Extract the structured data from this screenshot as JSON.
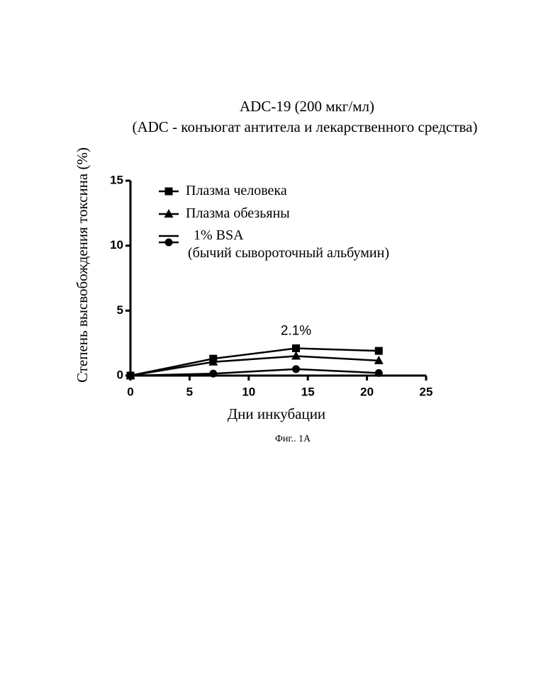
{
  "chart_data": {
    "type": "line",
    "title": "ADC-19 (200 мкг/мл)",
    "subtitle": "(ADC - конъюгат антитела и лекарственного средства)",
    "x_label": "Дни инкубации",
    "y_label": "Степень высвобождения токсина (%)",
    "x": [
      0,
      7,
      14,
      21
    ],
    "series": [
      {
        "name": "Плазма человека",
        "color": "#000000",
        "marker": "square",
        "values": [
          0,
          1.3,
          2.1,
          1.9
        ],
        "value_labels": [
          null,
          null,
          "2.1%",
          null
        ]
      },
      {
        "name": "Плазма обезьяны",
        "color": "#000000",
        "marker": "triangle",
        "values": [
          0,
          1.05,
          1.5,
          1.15
        ]
      },
      {
        "name": "1% BSA\n(бычий сывороточный альбумин)",
        "color": "#000000",
        "marker": "circle",
        "values": [
          0,
          0.15,
          0.5,
          0.2
        ]
      }
    ],
    "xlim": [
      0,
      25
    ],
    "xticks": [
      0,
      5,
      10,
      15,
      20,
      25
    ],
    "ylim": [
      0,
      15
    ],
    "yticks": [
      0,
      5,
      10,
      15
    ],
    "grid": false,
    "legend": "top-left"
  },
  "caption": "Фиг.. 1A"
}
